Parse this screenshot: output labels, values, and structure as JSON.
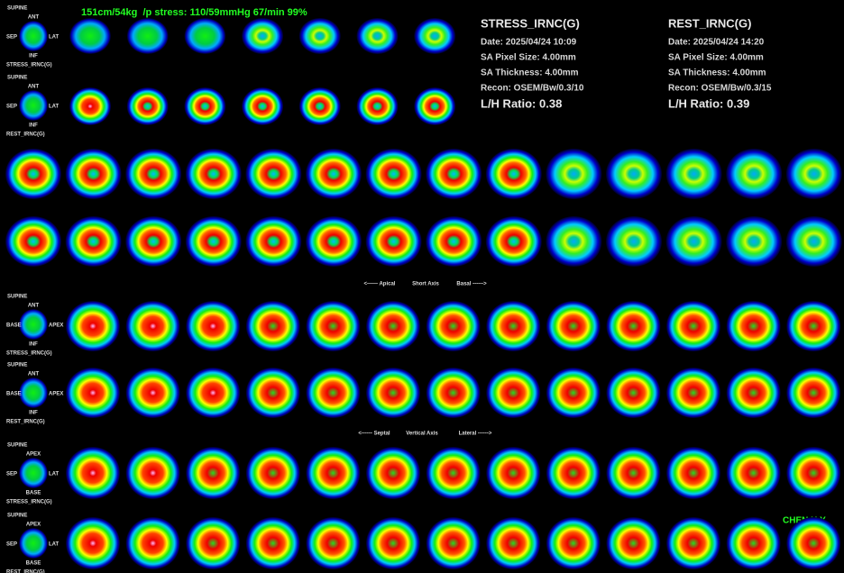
{
  "header": {
    "patient_info": "151cm/54kg  /p stress: 110/59mmHg 67/min 99%"
  },
  "panels": [
    {
      "title": "STRESS_IRNC(G)",
      "date": "Date: 2025/04/24 10:09",
      "pixel_size": "SA Pixel Size: 4.00mm",
      "thickness": "SA Thickness: 4.00mm",
      "recon": "Recon: OSEM/Bw/0.3/10",
      "lh_ratio": "L/H Ratio: 0.38"
    },
    {
      "title": "REST_IRNC(G)",
      "date": "Date: 2025/04/24 14:20",
      "pixel_size": "SA Pixel Size: 4.00mm",
      "thickness": "SA Thickness: 4.00mm",
      "recon": "Recon: OSEM/Bw/0.3/15",
      "lh_ratio": "L/H Ratio: 0.39"
    }
  ],
  "legends": [
    {
      "position": "SUPINE",
      "top": "ANT",
      "left": "SEP",
      "right": "LAT",
      "bottom": "INF",
      "series": "STRESS_IRNC(G)"
    },
    {
      "position": "SUPINE",
      "top": "ANT",
      "left": "SEP",
      "right": "LAT",
      "bottom": "INF",
      "series": "REST_IRNC(G)"
    },
    {
      "position": "SUPINE",
      "top": "ANT",
      "left": "BASE",
      "right": "APEX",
      "bottom": "INF",
      "series": "STRESS_IRNC(G)"
    },
    {
      "position": "SUPINE",
      "top": "ANT",
      "left": "BASE",
      "right": "APEX",
      "bottom": "INF",
      "series": "REST_IRNC(G)"
    },
    {
      "position": "SUPINE",
      "top": "APEX",
      "left": "SEP",
      "right": "LAT",
      "bottom": "BASE",
      "series": "STRESS_IRNC(G)"
    },
    {
      "position": "SUPINE",
      "top": "APEX",
      "left": "SEP",
      "right": "LAT",
      "bottom": "BASE",
      "series": "REST_IRNC(G)"
    }
  ],
  "axis_captions": [
    {
      "start": "<------ Apical",
      "name": "Short Axis",
      "end": "Basal ------>"
    },
    {
      "start": "<------ Septal",
      "name": "Vertical Axis",
      "end": "Lateral ------>"
    }
  ],
  "operator": "CHEN H.Y."
}
